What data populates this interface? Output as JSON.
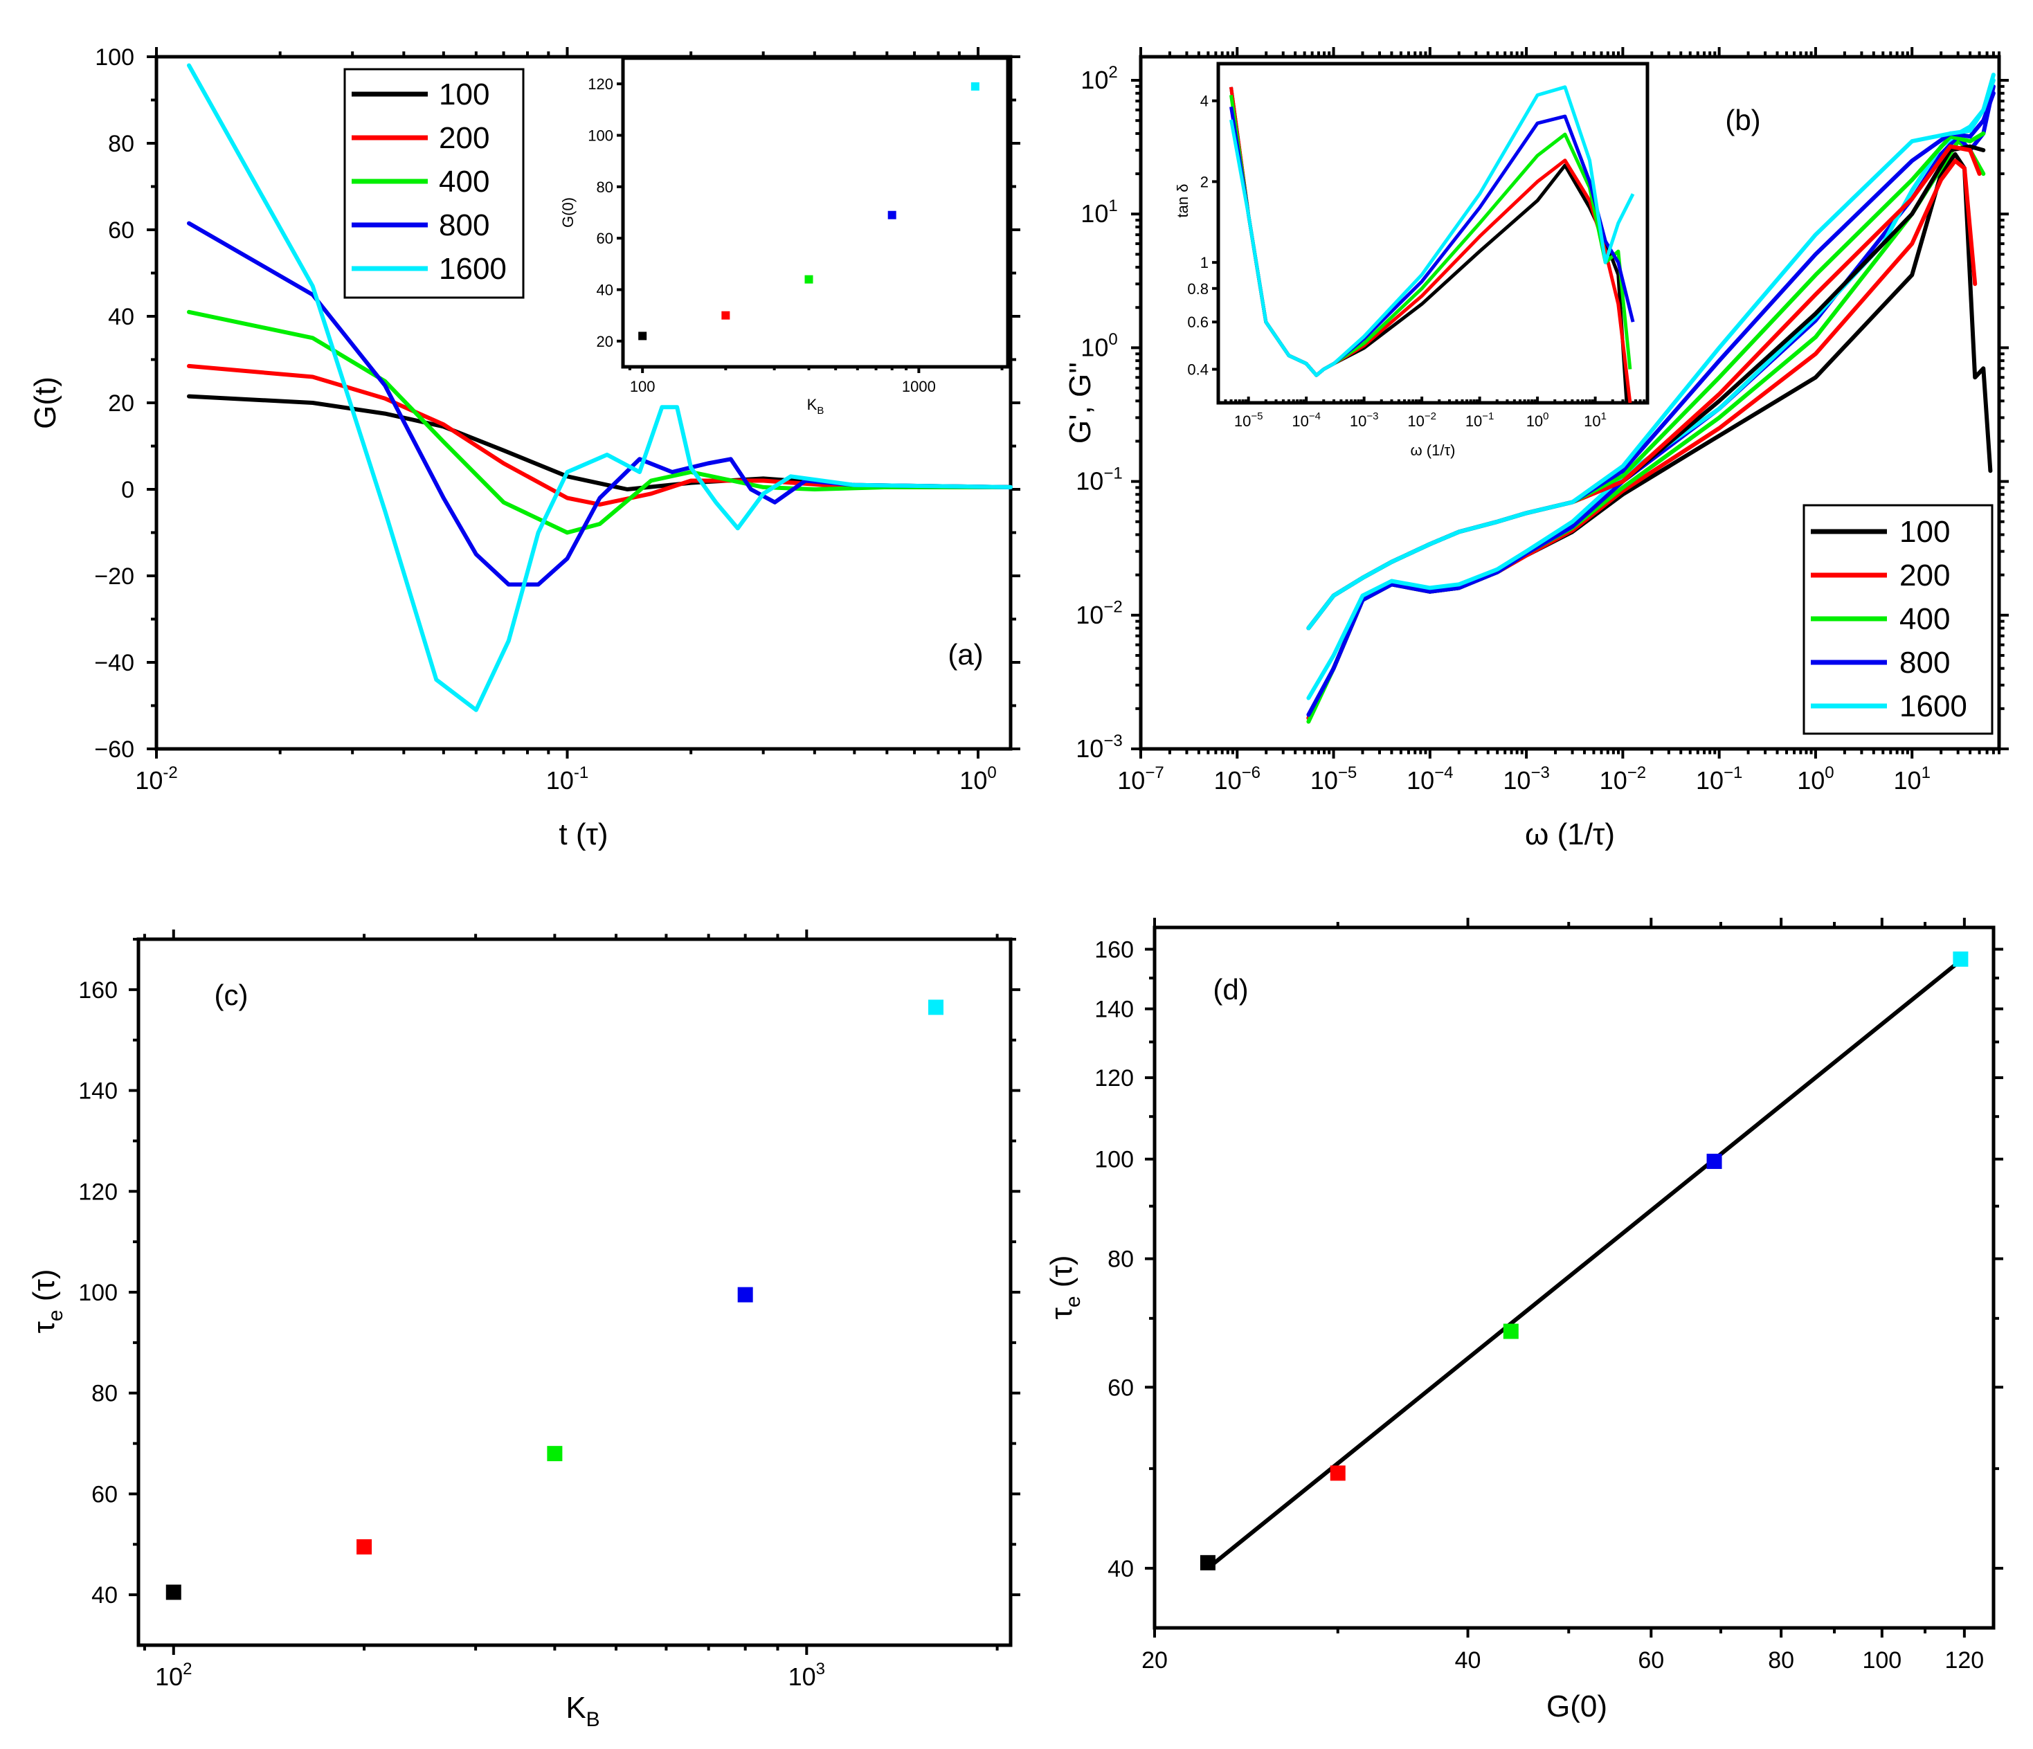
{
  "colors": {
    "100": "#000000",
    "200": "#ff0000",
    "400": "#00ee00",
    "800": "#0000ee",
    "1600": "#00eeff"
  },
  "legend_labels": [
    "100",
    "200",
    "400",
    "800",
    "1600"
  ],
  "chart_data": [
    {
      "panel": "a",
      "type": "line",
      "label": "(a)",
      "xlabel": "t (τ)",
      "ylabel": "G(t)",
      "xscale": "log",
      "xlim": [
        0.01,
        1.2
      ],
      "ylim": [
        -60,
        100
      ],
      "yticks": [
        -60,
        -40,
        -20,
        0,
        20,
        40,
        60,
        80,
        100
      ],
      "xticks": [
        {
          "v": 0.01,
          "b": "10",
          "e": "-2"
        },
        {
          "v": 0.1,
          "b": "10",
          "e": "-1"
        },
        {
          "v": 1,
          "b": "10",
          "e": "0"
        }
      ],
      "legend_position": "top-left",
      "series": [
        {
          "name": "100",
          "x": [
            0.012,
            0.024,
            0.036,
            0.05,
            0.07,
            0.1,
            0.14,
            0.2,
            0.3,
            0.5,
            1.2
          ],
          "y": [
            21.5,
            20,
            17.5,
            14.5,
            9,
            3,
            0,
            1.5,
            2.5,
            1,
            0.5
          ]
        },
        {
          "name": "200",
          "x": [
            0.012,
            0.024,
            0.036,
            0.05,
            0.07,
            0.1,
            0.12,
            0.16,
            0.2,
            0.3,
            0.5,
            1.2
          ],
          "y": [
            28.5,
            26,
            21,
            15,
            6,
            -2,
            -3.5,
            -1,
            2,
            2,
            0.5,
            0.5
          ]
        },
        {
          "name": "400",
          "x": [
            0.012,
            0.024,
            0.036,
            0.05,
            0.07,
            0.1,
            0.12,
            0.16,
            0.2,
            0.3,
            0.4,
            0.6,
            1.2
          ],
          "y": [
            41,
            35,
            25,
            11,
            -3,
            -10,
            -8,
            2,
            4,
            0.5,
            0,
            0.5,
            0.5
          ]
        },
        {
          "name": "800",
          "x": [
            0.012,
            0.024,
            0.036,
            0.05,
            0.06,
            0.072,
            0.085,
            0.1,
            0.12,
            0.15,
            0.18,
            0.22,
            0.25,
            0.28,
            0.32,
            0.38,
            0.5,
            1.2
          ],
          "y": [
            61.5,
            45,
            24,
            -2,
            -15,
            -22,
            -22,
            -16,
            -2,
            7,
            4,
            6,
            7,
            0,
            -3,
            2,
            1,
            0.5
          ]
        },
        {
          "name": "1600",
          "x": [
            0.012,
            0.024,
            0.036,
            0.048,
            0.06,
            0.072,
            0.085,
            0.1,
            0.125,
            0.15,
            0.17,
            0.185,
            0.2,
            0.23,
            0.26,
            0.3,
            0.35,
            0.5,
            1.2
          ],
          "y": [
            98,
            47,
            -5,
            -44,
            -51,
            -35,
            -10,
            4,
            8,
            4,
            19,
            19,
            5,
            -3,
            -9,
            -1,
            3,
            1,
            0.5
          ]
        }
      ],
      "inset": {
        "type": "scatter",
        "xlabel": "K",
        "xlabel_sub": "B",
        "ylabel": "G(0)",
        "xscale": "log",
        "xlim": [
          85,
          2100
        ],
        "ylim": [
          10,
          130
        ],
        "yticks": [
          20,
          40,
          60,
          80,
          100,
          120
        ],
        "xticks": [
          100,
          1000
        ],
        "x": [
          100,
          200,
          400,
          800,
          1600
        ],
        "y": [
          22,
          30,
          44,
          69,
          119
        ]
      }
    },
    {
      "panel": "b",
      "type": "line",
      "label": "(b)",
      "xlabel": "ω (1/τ)",
      "ylabel": "G', G''",
      "xscale": "log",
      "yscale": "log",
      "xlim": [
        1e-07,
        80
      ],
      "ylim": [
        0.001,
        150
      ],
      "legend_position": "bottom-right",
      "series_lower": [
        {
          "name": "100",
          "x": [
            5.5e-06,
            1e-05,
            2e-05,
            4e-05,
            0.0001,
            0.0002,
            0.0005,
            0.001,
            0.003,
            0.01,
            0.1,
            1,
            10,
            20,
            28,
            35,
            45,
            55,
            65
          ],
          "y": [
            0.0017,
            0.004,
            0.013,
            0.017,
            0.015,
            0.016,
            0.021,
            0.028,
            0.042,
            0.08,
            0.22,
            0.6,
            3.5,
            20,
            28,
            22,
            0.6,
            0.7,
            0.12
          ]
        },
        {
          "name": "200",
          "x": [
            5.5e-06,
            1e-05,
            2e-05,
            4e-05,
            0.0001,
            0.0002,
            0.0005,
            0.001,
            0.003,
            0.01,
            0.1,
            1,
            10,
            20,
            28,
            35,
            45
          ],
          "y": [
            0.0017,
            0.004,
            0.013,
            0.017,
            0.015,
            0.016,
            0.021,
            0.028,
            0.043,
            0.085,
            0.25,
            0.9,
            6,
            18,
            25,
            22,
            3
          ]
        },
        {
          "name": "400",
          "x": [
            5.5e-06,
            1e-05,
            2e-05,
            4e-05,
            0.0001,
            0.0002,
            0.0005,
            0.001,
            0.003,
            0.01,
            0.1,
            1,
            10,
            20,
            30,
            40,
            55
          ],
          "y": [
            0.0016,
            0.004,
            0.013,
            0.017,
            0.015,
            0.016,
            0.021,
            0.029,
            0.045,
            0.09,
            0.3,
            1.2,
            10,
            22,
            35,
            30,
            20
          ]
        },
        {
          "name": "800",
          "x": [
            5.5e-06,
            1e-05,
            2e-05,
            4e-05,
            0.0001,
            0.0002,
            0.0005,
            0.001,
            0.003,
            0.01,
            0.1,
            1,
            10,
            20,
            30,
            40,
            55,
            70
          ],
          "y": [
            0.0018,
            0.004,
            0.013,
            0.017,
            0.015,
            0.016,
            0.021,
            0.029,
            0.046,
            0.1,
            0.35,
            1.6,
            13,
            28,
            38,
            30,
            40,
            90
          ]
        },
        {
          "name": "1600",
          "x": [
            5.5e-06,
            1e-05,
            2e-05,
            4e-05,
            0.0001,
            0.0002,
            0.0005,
            0.001,
            0.003,
            0.01,
            0.1,
            1,
            5,
            10,
            20,
            30,
            40,
            55,
            70
          ],
          "y": [
            0.0024,
            0.005,
            0.014,
            0.018,
            0.016,
            0.017,
            0.022,
            0.03,
            0.05,
            0.11,
            0.35,
            1.7,
            6,
            15,
            32,
            40,
            45,
            60,
            110
          ]
        }
      ],
      "series_upper": [
        {
          "name": "100",
          "x": [
            5.5e-06,
            1e-05,
            2e-05,
            4e-05,
            0.0001,
            0.0002,
            0.0005,
            0.001,
            0.003,
            0.01,
            0.1,
            1,
            10,
            25,
            40,
            55
          ],
          "y": [
            0.008,
            0.014,
            0.019,
            0.025,
            0.034,
            0.042,
            0.05,
            0.058,
            0.07,
            0.1,
            0.4,
            1.8,
            10,
            30,
            32,
            30
          ]
        },
        {
          "name": "200",
          "x": [
            5.5e-06,
            1e-05,
            2e-05,
            4e-05,
            0.0001,
            0.0002,
            0.0005,
            0.001,
            0.003,
            0.01,
            0.1,
            1,
            10,
            25,
            40,
            50
          ],
          "y": [
            0.008,
            0.014,
            0.019,
            0.025,
            0.034,
            0.042,
            0.05,
            0.058,
            0.07,
            0.1,
            0.45,
            2.5,
            13,
            32,
            30,
            20
          ]
        },
        {
          "name": "400",
          "x": [
            5.5e-06,
            1e-05,
            2e-05,
            4e-05,
            0.0001,
            0.0002,
            0.0005,
            0.001,
            0.003,
            0.01,
            0.1,
            1,
            10,
            25,
            40,
            55
          ],
          "y": [
            0.008,
            0.014,
            0.019,
            0.025,
            0.034,
            0.042,
            0.05,
            0.058,
            0.07,
            0.11,
            0.6,
            3.5,
            18,
            38,
            35,
            40
          ]
        },
        {
          "name": "800",
          "x": [
            5.5e-06,
            1e-05,
            2e-05,
            4e-05,
            0.0001,
            0.0002,
            0.0005,
            0.001,
            0.003,
            0.01,
            0.1,
            1,
            10,
            25,
            40,
            55,
            70
          ],
          "y": [
            0.008,
            0.014,
            0.019,
            0.025,
            0.034,
            0.042,
            0.05,
            0.058,
            0.07,
            0.12,
            0.8,
            5,
            25,
            40,
            38,
            50,
            80
          ]
        },
        {
          "name": "1600",
          "x": [
            5.5e-06,
            1e-05,
            2e-05,
            4e-05,
            0.0001,
            0.0002,
            0.0005,
            0.001,
            0.003,
            0.01,
            0.1,
            1,
            10,
            25,
            40,
            55,
            70
          ],
          "y": [
            0.008,
            0.014,
            0.019,
            0.025,
            0.034,
            0.042,
            0.05,
            0.058,
            0.07,
            0.13,
            1,
            7,
            35,
            40,
            42,
            60,
            100
          ]
        }
      ],
      "inset": {
        "type": "line",
        "xlabel": "ω (1/τ)",
        "ylabel": "tan δ",
        "xscale": "log",
        "yscale": "log",
        "xlim": [
          3e-06,
          80
        ],
        "ylim": [
          0.3,
          5.5
        ],
        "yticks": [
          0.4,
          0.6,
          0.8,
          1,
          2,
          4
        ],
        "series": [
          {
            "name": "100",
            "x": [
              5e-06,
              1e-05,
              2e-05,
              5e-05,
              0.0001,
              0.00015,
              0.0002,
              0.0003,
              0.001,
              0.01,
              0.1,
              1,
              3,
              8,
              15,
              25,
              35
            ],
            "y": [
              4.5,
              1.5,
              0.6,
              0.45,
              0.42,
              0.38,
              0.4,
              0.42,
              0.48,
              0.7,
              1.1,
              1.7,
              2.3,
              1.6,
              1.2,
              0.9,
              0.3
            ]
          },
          {
            "name": "200",
            "x": [
              5e-06,
              1e-05,
              2e-05,
              5e-05,
              0.0001,
              0.00015,
              0.0002,
              0.0003,
              0.001,
              0.01,
              0.1,
              1,
              3,
              8,
              15,
              25,
              40
            ],
            "y": [
              4.5,
              1.5,
              0.6,
              0.45,
              0.42,
              0.38,
              0.4,
              0.42,
              0.49,
              0.75,
              1.25,
              2.0,
              2.4,
              1.7,
              1.1,
              0.7,
              0.3
            ]
          },
          {
            "name": "400",
            "x": [
              5e-06,
              1e-05,
              2e-05,
              5e-05,
              0.0001,
              0.00015,
              0.0002,
              0.0003,
              0.001,
              0.01,
              0.1,
              1,
              3,
              8,
              15,
              25,
              40
            ],
            "y": [
              4.2,
              1.5,
              0.6,
              0.45,
              0.42,
              0.38,
              0.4,
              0.42,
              0.5,
              0.8,
              1.4,
              2.5,
              3.0,
              1.9,
              1.0,
              1.1,
              0.4
            ]
          },
          {
            "name": "800",
            "x": [
              5e-06,
              1e-05,
              2e-05,
              5e-05,
              0.0001,
              0.00015,
              0.0002,
              0.0003,
              0.001,
              0.01,
              0.1,
              1,
              3,
              8,
              15,
              25,
              45
            ],
            "y": [
              3.8,
              1.5,
              0.6,
              0.45,
              0.42,
              0.38,
              0.4,
              0.42,
              0.52,
              0.85,
              1.6,
              3.3,
              3.5,
              2.0,
              1.2,
              1.0,
              0.6
            ]
          },
          {
            "name": "1600",
            "x": [
              5e-06,
              1e-05,
              2e-05,
              5e-05,
              0.0001,
              0.00015,
              0.0002,
              0.0003,
              0.001,
              0.01,
              0.1,
              1,
              3,
              8,
              15,
              25,
              45
            ],
            "y": [
              3.4,
              1.5,
              0.6,
              0.45,
              0.42,
              0.38,
              0.4,
              0.42,
              0.53,
              0.9,
              1.8,
              4.2,
              4.5,
              2.4,
              1.0,
              1.4,
              1.8
            ]
          }
        ]
      }
    },
    {
      "panel": "c",
      "type": "scatter",
      "label": "(c)",
      "xlabel": "K",
      "xlabel_sub": "B",
      "ylabel": "τ",
      "ylabel_sub": "e",
      "ylabel_suffix": " (τ)",
      "xscale": "log",
      "xlim": [
        88,
        2100
      ],
      "ylim": [
        30,
        170
      ],
      "yticks": [
        40,
        60,
        80,
        100,
        120,
        140,
        160
      ],
      "xticks": [
        {
          "v": 100,
          "b": "10",
          "e": "2"
        },
        {
          "v": 1000,
          "b": "10",
          "e": "3"
        }
      ],
      "x": [
        100,
        200,
        400,
        800,
        1600
      ],
      "y": [
        40.5,
        49.5,
        68,
        99.5,
        156.5
      ]
    },
    {
      "panel": "d",
      "type": "scatter",
      "label": "(d)",
      "xlabel": "G(0)",
      "ylabel": "τ",
      "ylabel_sub": "e",
      "ylabel_suffix": " (τ)",
      "xscale": "log",
      "yscale": "log",
      "xlim": [
        20,
        128
      ],
      "ylim": [
        35,
        168
      ],
      "xticks": [
        20,
        40,
        60,
        80,
        100,
        120
      ],
      "yticks": [
        40,
        60,
        80,
        100,
        120,
        140,
        160
      ],
      "x": [
        22.5,
        30,
        44,
        69,
        119
      ],
      "y": [
        40.5,
        49.5,
        68,
        99.5,
        156.5
      ],
      "fit": {
        "x": [
          22.5,
          119
        ],
        "y": [
          40,
          156
        ]
      }
    }
  ]
}
